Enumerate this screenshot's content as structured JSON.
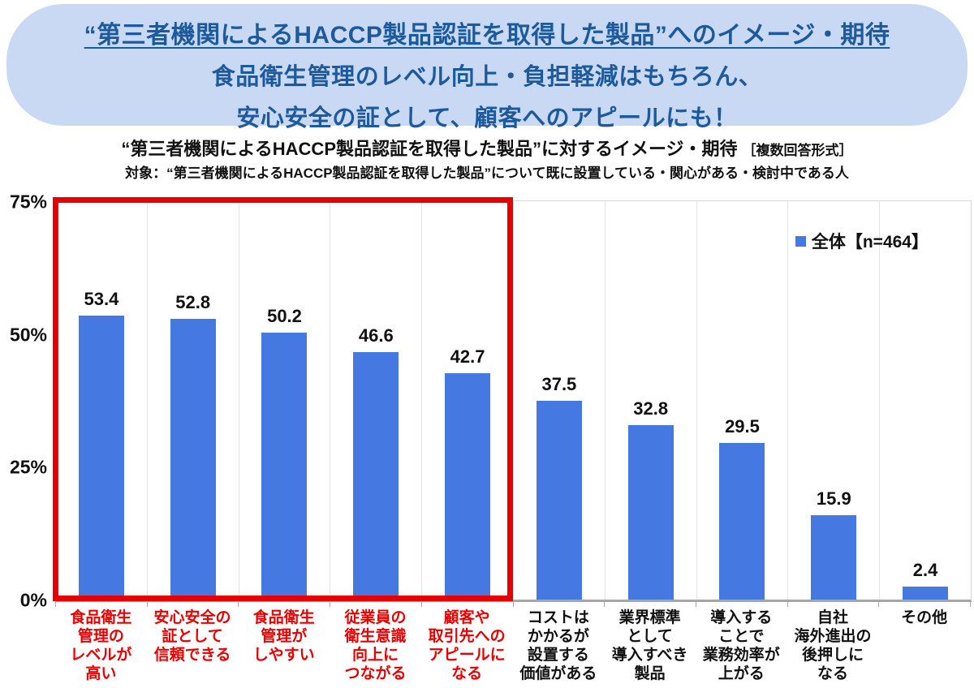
{
  "banner": {
    "line1": "“第三者機関によるHACCP製品認証を取得した製品”へのイメージ・期待",
    "line2": "食品衛生管理のレベル向上・負担軽減はもちろん、",
    "line3": "安心安全の証として、顧客へのアピールにも！",
    "bg_color": "#c9d9f4",
    "text_color": "#1d5a9b"
  },
  "chart_header": {
    "title": "“第三者機関によるHACCP製品認証を取得した製品”に対するイメージ・期待",
    "suffix": "［複数回答形式］",
    "subtitle": "対象：“第三者機関によるHACCP製品認証を取得した製品”について既に設置している・関心がある・検討中である人"
  },
  "legend": {
    "label": "全体【n=464】",
    "marker_color": "#4678e2"
  },
  "colors": {
    "bar": "#4678e2",
    "highlight_red": "#e60000",
    "banner_bg": "#c9d9f4",
    "banner_text": "#1d5a9b"
  },
  "chart_data": {
    "type": "bar",
    "title": "“第三者機関によるHACCP製品認証を取得した製品”に対するイメージ・期待［複数回答形式］",
    "series_name": "全体【n=464】",
    "categories": [
      "食品衛生管理のレベルが高い",
      "安心安全の証として信頼できる",
      "食品衛生管理がしやすい",
      "従業員の衛生意識向上につながる",
      "顧客や取引先へのアピールになる",
      "コストはかかるが設置する価値がある",
      "業界標準として導入すべき製品",
      "導入することで業務効率が上がる",
      "自社海外進出の後押しになる",
      "その他"
    ],
    "category_label_lines": [
      [
        "食品衛生",
        "管理の",
        "レベルが",
        "高い"
      ],
      [
        "安心安全の",
        "証として",
        "信頼できる"
      ],
      [
        "食品衛生",
        "管理が",
        "しやすい"
      ],
      [
        "従業員の",
        "衛生意識",
        "向上に",
        "つながる"
      ],
      [
        "顧客や",
        "取引先への",
        "アピールに",
        "なる"
      ],
      [
        "コストは",
        "かかるが",
        "設置する",
        "価値がある"
      ],
      [
        "業界標準",
        "として",
        "導入すべき",
        "製品"
      ],
      [
        "導入する",
        "ことで",
        "業務効率が",
        "上がる"
      ],
      [
        "自社",
        "海外進出の",
        "後押しに",
        "なる"
      ],
      [
        "その他"
      ]
    ],
    "values": [
      53.4,
      52.8,
      50.2,
      46.6,
      42.7,
      37.5,
      32.8,
      29.5,
      15.9,
      2.4
    ],
    "highlighted_indices": [
      0,
      1,
      2,
      3,
      4
    ],
    "ylim": [
      0,
      75
    ],
    "yticks": [
      {
        "value": 75,
        "label": "75%"
      },
      {
        "value": 50,
        "label": "50%"
      },
      {
        "value": 25,
        "label": "25%"
      },
      {
        "value": 0,
        "label": "0%"
      }
    ],
    "grid": "vertical-only",
    "legend_position": "top-right",
    "bar_color": "#4678e2",
    "highlight_box_color": "#e60000"
  }
}
